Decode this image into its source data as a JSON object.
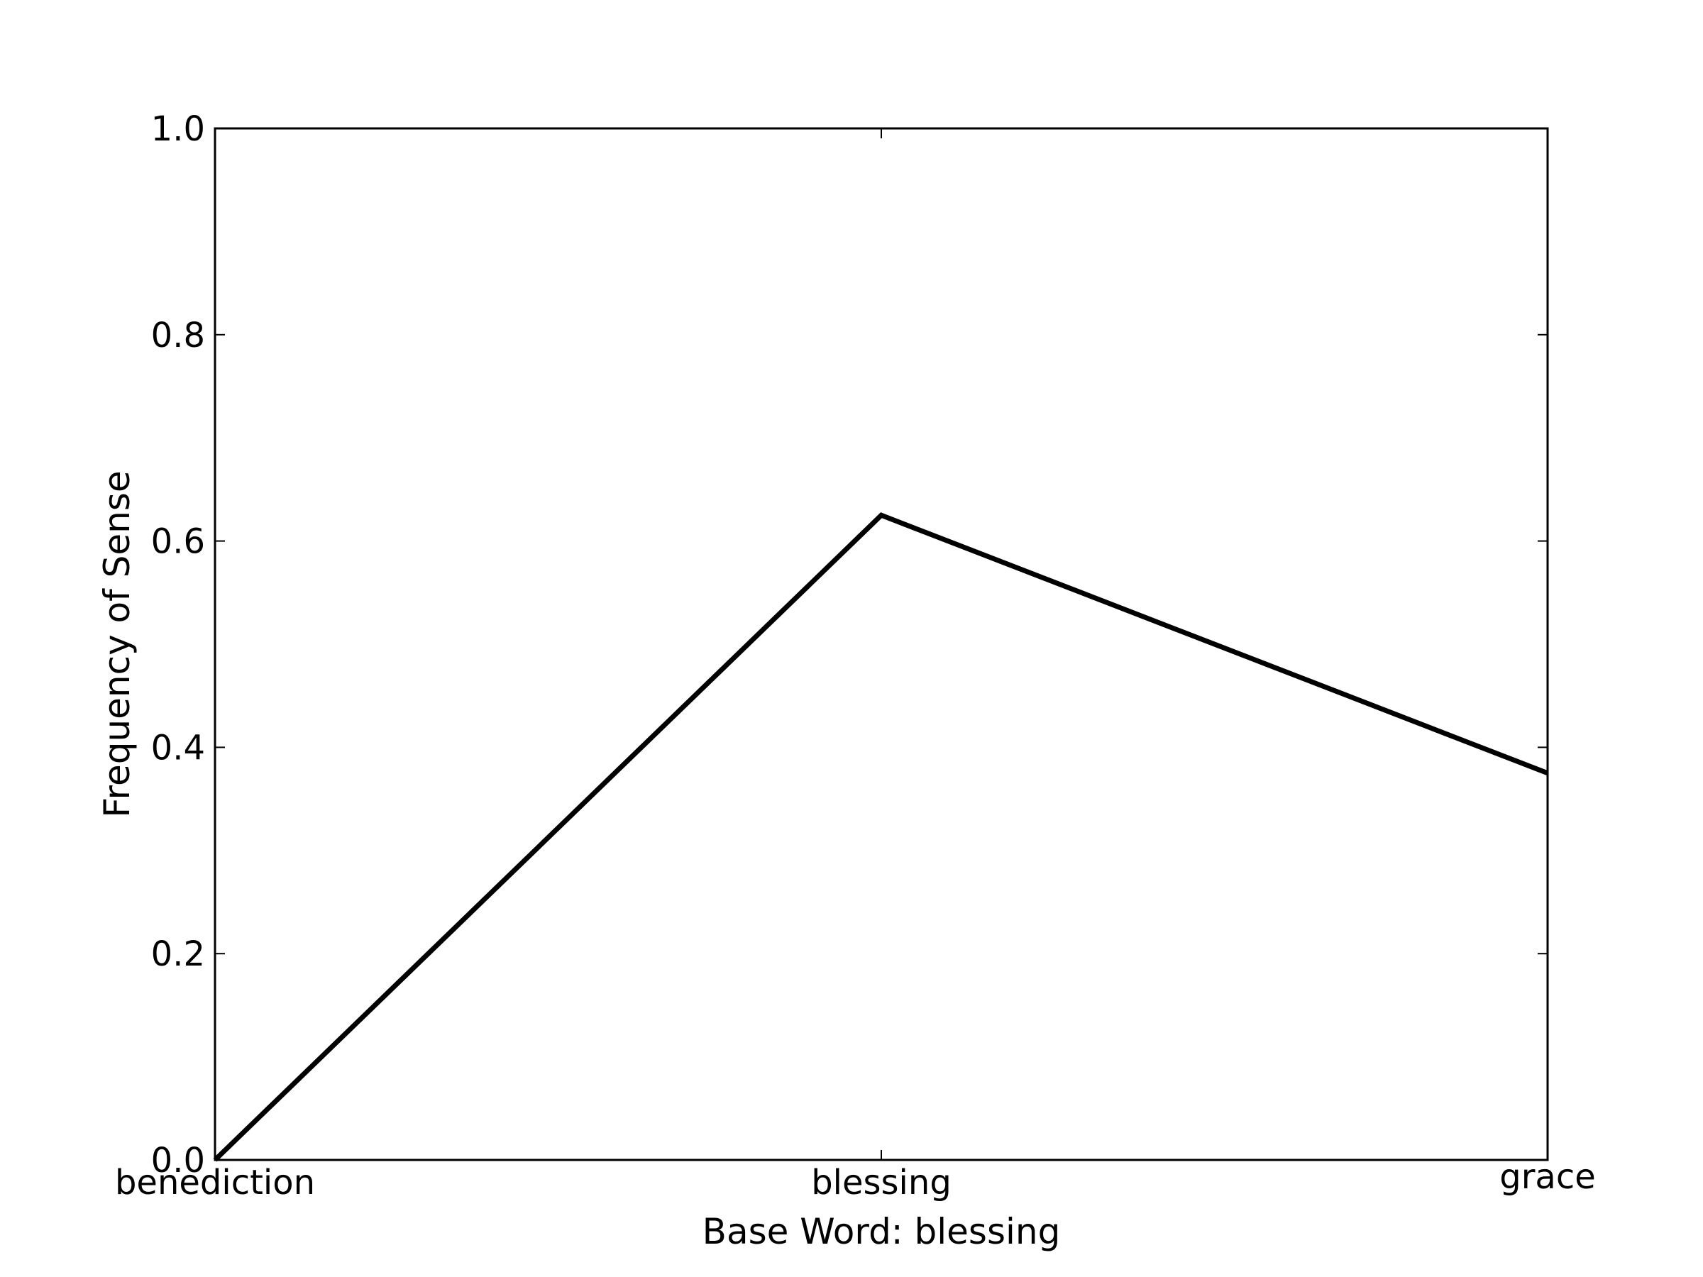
{
  "chart_data": {
    "type": "line",
    "title": "",
    "xlabel": "Base Word: blessing",
    "ylabel": "Frequency of Sense",
    "categories": [
      "benediction",
      "blessing",
      "grace"
    ],
    "series": [
      {
        "name": "Frequency of Sense",
        "values": [
          0.0,
          0.625,
          0.375
        ],
        "color": "#000000"
      }
    ],
    "ylim": [
      0,
      1.0
    ],
    "yticks": [
      "0.0",
      "0.2",
      "0.4",
      "0.6",
      "0.8",
      "1.0"
    ],
    "grid": false,
    "legend": "none"
  }
}
